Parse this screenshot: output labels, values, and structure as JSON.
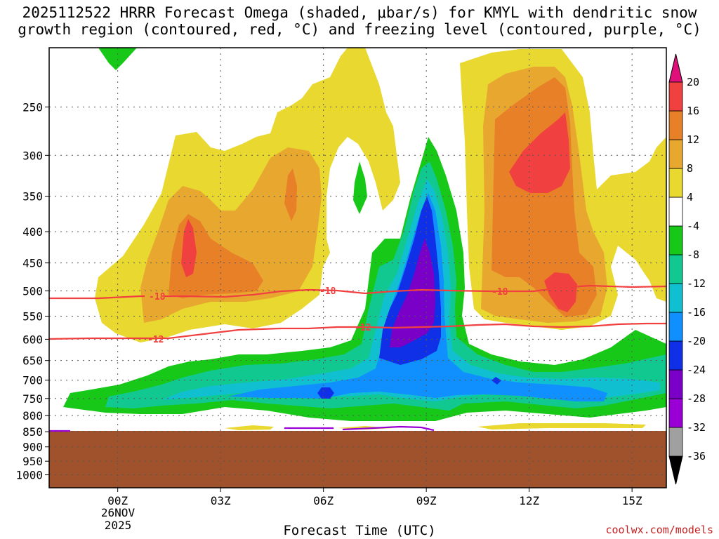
{
  "title_line1": "2025112522 HRRR Forecast Omega (shaded, μbar/s) for KMYL with dendritic snow",
  "title_line2": "growth region (contoured, red, °C) and freezing level (contoured, purple, °C)",
  "chart_data": {
    "type": "heatmap",
    "title": "2025112522 HRRR Forecast Omega (shaded, μbar/s) for KMYL with dendritic snow growth region (contoured, red, °C) and freezing level (contoured, purple, °C)",
    "xlabel": "Forecast Time (UTC)",
    "ylabel": "",
    "x_ticks": [
      "00Z",
      "03Z",
      "06Z",
      "09Z",
      "12Z",
      "15Z"
    ],
    "x_tick_hours": [
      2,
      5,
      8,
      11,
      14,
      17
    ],
    "date_label": [
      "26NOV",
      "2025"
    ],
    "xlim_hours_from_init": [
      0,
      18
    ],
    "y_ticks": [
      250,
      300,
      350,
      400,
      450,
      500,
      550,
      600,
      650,
      700,
      750,
      800,
      850,
      900,
      950,
      1000
    ],
    "ylim_hPa": [
      1050,
      200
    ],
    "colorbar_levels": [
      -36,
      -32,
      -28,
      -24,
      -20,
      -16,
      -12,
      -8,
      -4,
      4,
      8,
      12,
      16,
      20
    ],
    "colorbar_colors": [
      "#000000",
      "#a0a0a0",
      "#9a00d6",
      "#7a00c8",
      "#1030e8",
      "#1090ff",
      "#10c0d0",
      "#10c890",
      "#18c818",
      "#ffffff",
      "#e8d830",
      "#e8a830",
      "#e88028",
      "#f04040",
      "#e0107a"
    ],
    "contours": [
      {
        "name": "dgz_-18",
        "label": "-18",
        "color": "#f04040",
        "pressure_hPa": 510
      },
      {
        "name": "dgz_-12",
        "label": "-12",
        "color": "#f04040",
        "pressure_hPa": 590
      },
      {
        "name": "freezing_level",
        "label": "",
        "color": "#9a00d6",
        "pressure_hPa": 850
      }
    ],
    "terrain_top_hPa": 855
  },
  "xlabel": "Forecast Time (UTC)",
  "credit": "coolwx.com/models",
  "dgz_labels": [
    "-18",
    "-18",
    "-18",
    "-12",
    "-12"
  ]
}
